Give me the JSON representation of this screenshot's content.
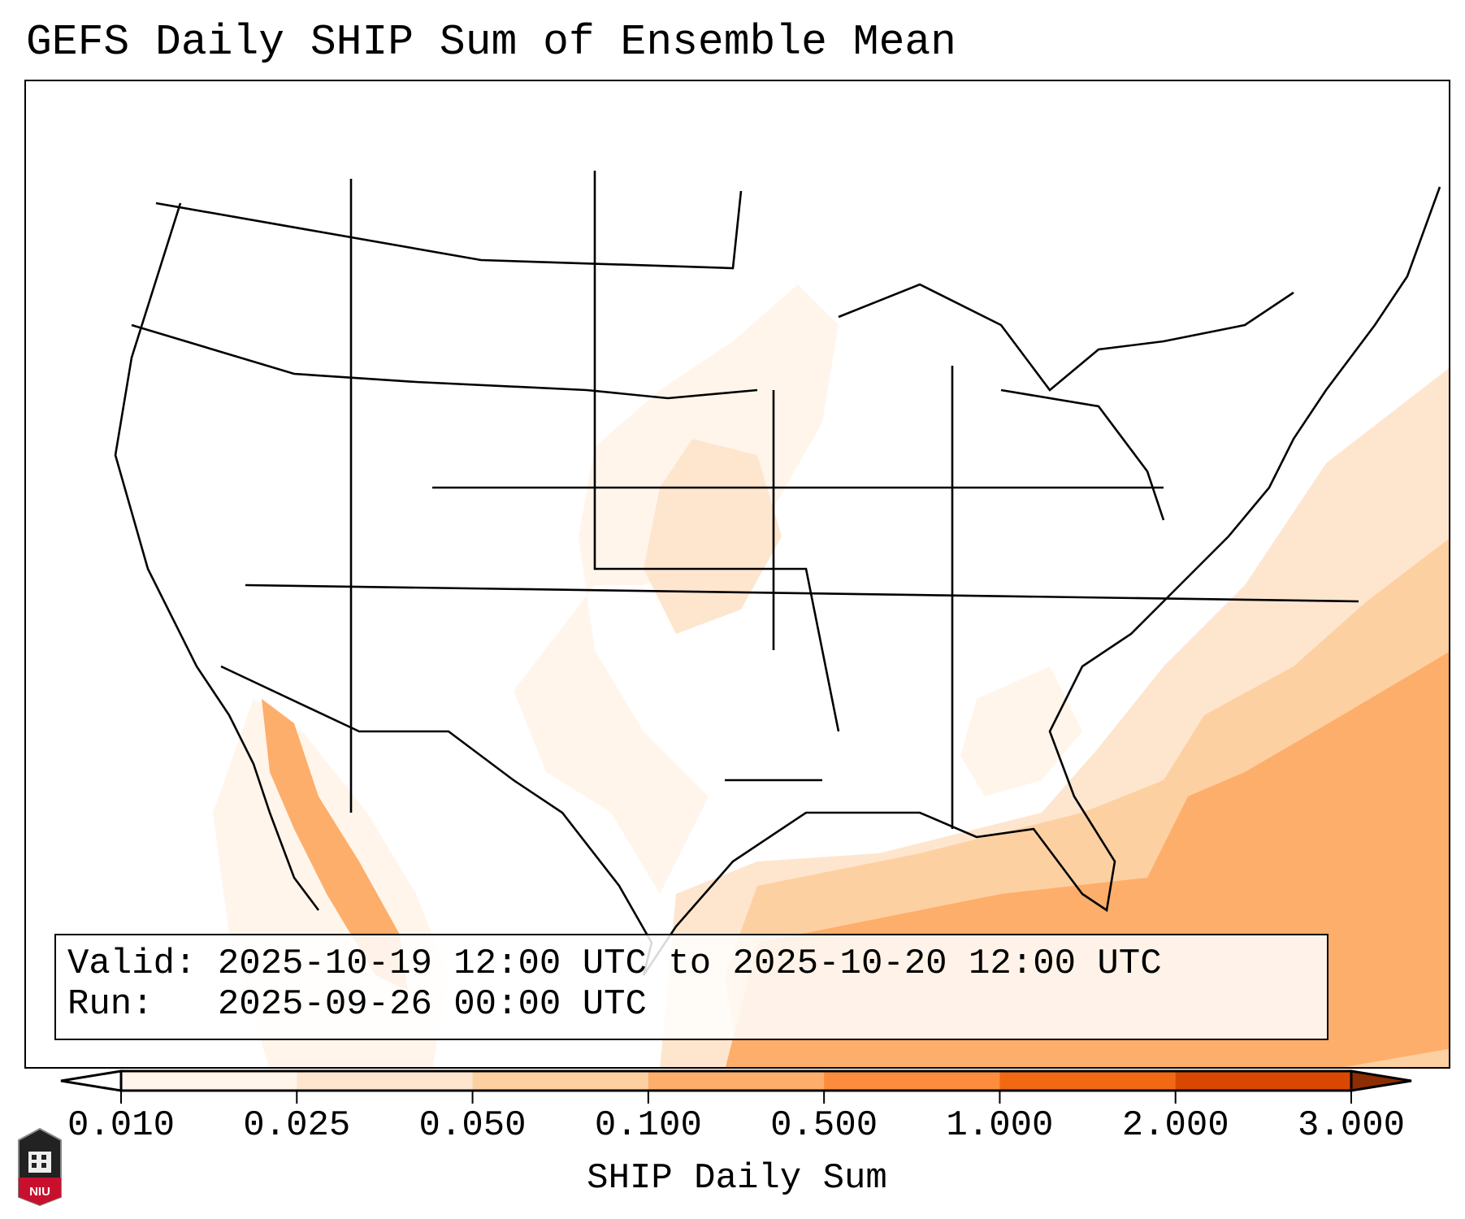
{
  "title": "GEFS Daily SHIP Sum of Ensemble Mean",
  "info": {
    "valid_line": "Valid: 2025-10-19 12:00 UTC to 2025-10-20 12:00 UTC",
    "run_line": "Run:   2025-09-26 00:00 UTC"
  },
  "colorbar": {
    "label": "SHIP Daily Sum",
    "ticks": [
      "0.010",
      "0.025",
      "0.050",
      "0.100",
      "0.500",
      "1.000",
      "2.000",
      "3.000"
    ],
    "colors": [
      "#fff5eb",
      "#fee6ce",
      "#fdd0a2",
      "#fdae6b",
      "#fd8d3c",
      "#f16913",
      "#d94801"
    ],
    "under_color": "#ffffff",
    "over_color": "#8c2d04"
  },
  "logo": {
    "text": "NIU"
  }
}
